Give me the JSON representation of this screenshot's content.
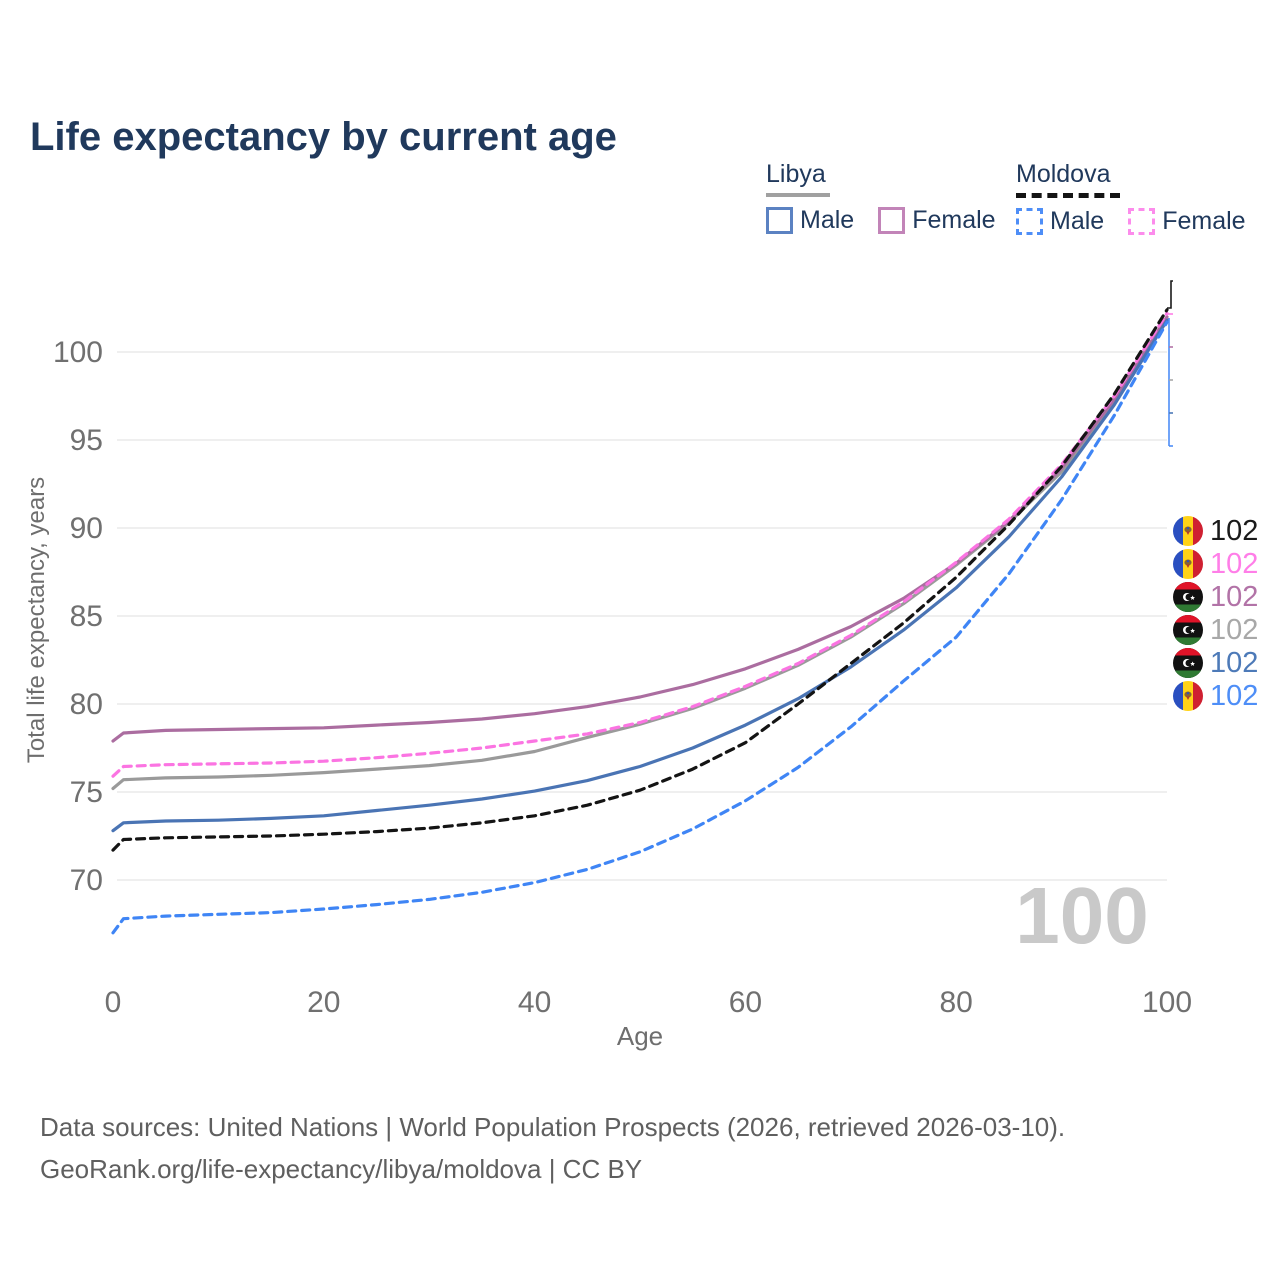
{
  "header": {
    "title": "Life expectancy by current age"
  },
  "legend": {
    "groups": [
      {
        "name": "Libya",
        "line_style": "solid",
        "underline_color": "#a0a0a0",
        "items": [
          {
            "label": "Male",
            "color": "#5b82c2",
            "dashed": false
          },
          {
            "label": "Female",
            "color": "#c284b8",
            "dashed": false
          }
        ]
      },
      {
        "name": "Moldova",
        "line_style": "dashed",
        "underline_color": "#141414",
        "items": [
          {
            "label": "Male",
            "color": "#4e8ef7",
            "dashed": true
          },
          {
            "label": "Female",
            "color": "#fc8cec",
            "dashed": true
          }
        ]
      }
    ]
  },
  "watermark": {
    "text": "100",
    "color": "#c9c9c9"
  },
  "right_labels": [
    {
      "country": "moldova",
      "series": "Moldova",
      "value": "102",
      "color": "#1a1a1a"
    },
    {
      "country": "moldova",
      "series": "Moldova Female",
      "value": "102",
      "color": "#ff7ee8"
    },
    {
      "country": "libya",
      "series": "Libya Female",
      "value": "102",
      "color": "#b273a7"
    },
    {
      "country": "libya",
      "series": "Libya",
      "value": "102",
      "color": "#a8a8a8"
    },
    {
      "country": "libya",
      "series": "Libya Male",
      "value": "102",
      "color": "#4d7ab8"
    },
    {
      "country": "moldova",
      "series": "Moldova Male",
      "value": "102",
      "color": "#4e8ef7"
    }
  ],
  "chart_data": {
    "type": "line",
    "title": "Life expectancy by current age",
    "xlabel": "Age",
    "ylabel": "Total life expectancy, years",
    "xlim": [
      0,
      100
    ],
    "ylim": [
      66,
      103
    ],
    "xticks": [
      0,
      20,
      40,
      60,
      80,
      100
    ],
    "yticks": [
      70,
      75,
      80,
      85,
      90,
      95,
      100
    ],
    "grid": "horizontal",
    "legend_position": "top-right",
    "ages": [
      0,
      1,
      5,
      10,
      15,
      20,
      25,
      30,
      35,
      40,
      45,
      50,
      55,
      60,
      65,
      70,
      75,
      80,
      85,
      90,
      95,
      100
    ],
    "series": [
      {
        "name": "Libya",
        "country": "libya",
        "sex": "all",
        "style": "solid",
        "color": "#9a9a9a",
        "values": [
          75.2,
          75.7,
          75.8,
          75.85,
          75.95,
          76.1,
          76.3,
          76.5,
          76.8,
          77.3,
          78.1,
          78.85,
          79.75,
          80.9,
          82.2,
          83.8,
          85.7,
          87.9,
          90.3,
          93.2,
          97.1,
          101.9
        ]
      },
      {
        "name": "Libya Female",
        "country": "libya",
        "sex": "female",
        "style": "solid",
        "color": "#ab6da0",
        "values": [
          77.9,
          78.35,
          78.5,
          78.55,
          78.6,
          78.65,
          78.8,
          78.95,
          79.15,
          79.45,
          79.85,
          80.4,
          81.1,
          82.0,
          83.1,
          84.4,
          86.0,
          88.0,
          90.4,
          93.4,
          97.3,
          102.0
        ]
      },
      {
        "name": "Libya Male",
        "country": "libya",
        "sex": "male",
        "style": "solid",
        "color": "#4a74b4",
        "values": [
          72.8,
          73.25,
          73.35,
          73.4,
          73.5,
          73.65,
          73.95,
          74.25,
          74.6,
          75.05,
          75.65,
          76.45,
          77.5,
          78.8,
          80.3,
          82.1,
          84.2,
          86.6,
          89.5,
          92.9,
          97.0,
          101.8
        ]
      },
      {
        "name": "Moldova Female",
        "country": "moldova",
        "sex": "female",
        "style": "dashed",
        "color": "#fb74e2",
        "values": [
          75.9,
          76.45,
          76.55,
          76.6,
          76.65,
          76.75,
          76.95,
          77.2,
          77.5,
          77.9,
          78.3,
          78.95,
          79.85,
          81.0,
          82.3,
          83.9,
          85.8,
          88.05,
          90.5,
          93.6,
          97.5,
          102.2
        ]
      },
      {
        "name": "Moldova",
        "country": "moldova",
        "sex": "all",
        "style": "dashed",
        "color": "#141414",
        "values": [
          71.7,
          72.3,
          72.4,
          72.45,
          72.5,
          72.6,
          72.75,
          72.95,
          73.25,
          73.65,
          74.25,
          75.1,
          76.3,
          77.8,
          80.0,
          82.3,
          84.6,
          87.2,
          90.2,
          93.5,
          97.6,
          102.4
        ]
      },
      {
        "name": "Moldova Male",
        "country": "moldova",
        "sex": "male",
        "style": "dashed",
        "color": "#3f85f5",
        "values": [
          67.0,
          67.8,
          67.95,
          68.05,
          68.15,
          68.35,
          68.6,
          68.9,
          69.3,
          69.85,
          70.6,
          71.6,
          72.9,
          74.5,
          76.4,
          78.7,
          81.3,
          83.8,
          87.4,
          91.6,
          96.4,
          101.7
        ]
      }
    ]
  },
  "footer": {
    "line1": "Data sources: United Nations | World Population Prospects (2026, retrieved 2026-03-10).",
    "line2": "GeoRank.org/life-expectancy/libya/moldova | CC BY"
  }
}
